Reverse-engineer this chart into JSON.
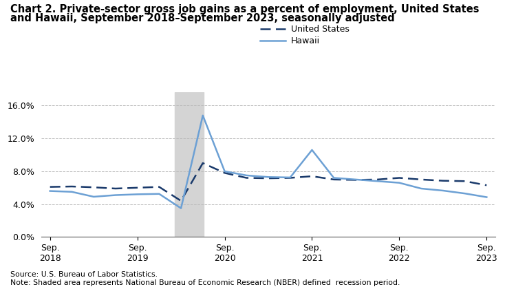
{
  "title_line1": "Chart 2. Private-sector gross job gains as a percent of employment, United States",
  "title_line2": "and Hawaii, September 2018–September 2023, seasonally adjusted",
  "source_note": "Source: U.S. Bureau of Labor Statistics.\nNote: Shaded area represents National Bureau of Economic Research (NBER) defined  recession period.",
  "us_quarterly": [
    6.1,
    6.15,
    6.05,
    5.9,
    6.0,
    6.1,
    4.4,
    9.0,
    7.8,
    7.2,
    7.15,
    7.2,
    7.4,
    7.0,
    6.95,
    7.0,
    7.2,
    7.0,
    6.85,
    6.8,
    6.3
  ],
  "hawaii_quarterly": [
    5.6,
    5.5,
    4.9,
    5.1,
    5.2,
    5.25,
    3.5,
    14.8,
    8.0,
    7.5,
    7.3,
    7.25,
    10.6,
    7.2,
    7.0,
    6.8,
    6.6,
    5.9,
    5.65,
    5.3,
    4.85
  ],
  "x_values": [
    0,
    1,
    2,
    3,
    4,
    5,
    6,
    7,
    8,
    9,
    10,
    11,
    12,
    13,
    14,
    15,
    16,
    17,
    18,
    19,
    20
  ],
  "recession_x_start": 5.7,
  "recession_x_end": 7.05,
  "xlim": [
    -0.4,
    20.4
  ],
  "ylim": [
    0.0,
    17.6
  ],
  "yticks": [
    0.0,
    4.0,
    8.0,
    12.0,
    16.0
  ],
  "ytick_labels": [
    "0.0%",
    "4.0%",
    "8.0%",
    "12.0%",
    "16.0%"
  ],
  "xtick_positions": [
    0,
    4,
    8,
    12,
    16,
    20
  ],
  "xtick_labels": [
    "Sep.\n2018",
    "Sep.\n2019",
    "Sep.\n2020",
    "Sep.\n2021",
    "Sep.\n2022",
    "Sep.\n2023"
  ],
  "us_color": "#1a3a6b",
  "hawaii_color": "#6ca0d4",
  "recession_color": "#d4d4d4",
  "grid_color": "#bbbbbb",
  "title_fontsize": 10.5,
  "tick_fontsize": 9,
  "legend_fontsize": 9,
  "note_fontsize": 7.8
}
